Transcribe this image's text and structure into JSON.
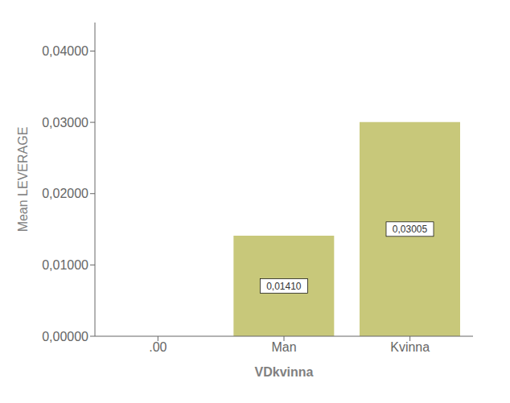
{
  "chart_data": {
    "type": "bar",
    "categories": [
      ".00",
      "Man",
      "Kvinna"
    ],
    "values": [
      0.0,
      0.0141,
      0.03005
    ],
    "value_labels": [
      null,
      "0,01410",
      "0,03005"
    ],
    "data_labels": true,
    "color": "#c8c87a",
    "xlabel": "VDkvinna",
    "ylabel": "Mean LEVERAGE",
    "ylim": [
      0.0,
      0.044
    ],
    "yticks": [
      {
        "value": 0.0,
        "label": "0,00000"
      },
      {
        "value": 0.01,
        "label": "0,01000"
      },
      {
        "value": 0.02,
        "label": "0,02000"
      },
      {
        "value": 0.03,
        "label": "0,03000"
      },
      {
        "value": 0.04,
        "label": "0,04000"
      }
    ],
    "grid": false
  }
}
